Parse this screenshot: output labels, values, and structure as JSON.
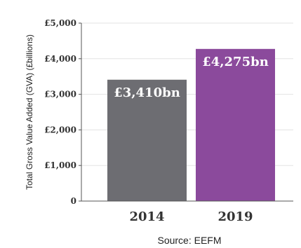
{
  "chart_data": {
    "type": "bar",
    "categories": [
      "2014",
      "2019"
    ],
    "values": [
      3410,
      4275
    ],
    "data_labels": [
      "£3,410bn",
      "£4,275bn"
    ],
    "bar_colors": [
      "#6d6d72",
      "#8b4a9c"
    ],
    "ylabel": "Total Gross Value Added (GVA) (£billions)",
    "ylim": [
      0,
      5000
    ],
    "yticks": [
      0,
      1000,
      2000,
      3000,
      4000,
      5000
    ],
    "ytick_labels": [
      "0",
      "£1,000",
      "£2,000",
      "£3,000",
      "£4,000",
      "£5,000"
    ],
    "grid": true,
    "source": "Source: EEFM"
  }
}
